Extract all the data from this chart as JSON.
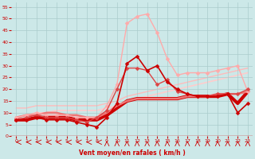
{
  "background_color": "#cce8e8",
  "grid_color": "#aacccc",
  "xlabel": "Vent moyen/en rafales ( km/h )",
  "xlim": [
    -0.5,
    23.5
  ],
  "ylim": [
    0,
    57
  ],
  "xticks": [
    0,
    1,
    2,
    3,
    4,
    5,
    6,
    7,
    8,
    9,
    10,
    11,
    12,
    13,
    14,
    15,
    16,
    17,
    18,
    19,
    20,
    21,
    22,
    23
  ],
  "yticks": [
    0,
    5,
    10,
    15,
    20,
    25,
    30,
    35,
    40,
    45,
    50,
    55
  ],
  "lines": [
    {
      "x": [
        0,
        1,
        2,
        3,
        4,
        5,
        6,
        7,
        8,
        9,
        10,
        11,
        12,
        13,
        14,
        15,
        16,
        17,
        18,
        19,
        20,
        21,
        22,
        23
      ],
      "y": [
        7,
        7,
        8,
        7,
        7,
        7,
        6,
        5,
        4,
        8,
        14,
        31,
        34,
        28,
        30,
        23,
        20,
        18,
        17,
        17,
        17,
        18,
        10,
        14
      ],
      "color": "#cc0000",
      "lw": 1.2,
      "marker": "D",
      "ms": 2.5,
      "zorder": 5
    },
    {
      "x": [
        0,
        1,
        2,
        3,
        4,
        5,
        6,
        7,
        8,
        9,
        10,
        11,
        12,
        13,
        14,
        15,
        16,
        17,
        18,
        19,
        20,
        21,
        22,
        23
      ],
      "y": [
        7,
        8,
        9,
        8,
        8,
        8,
        7,
        6,
        8,
        11,
        20,
        29,
        29,
        28,
        22,
        24,
        19,
        18,
        17,
        17,
        18,
        18,
        18,
        20
      ],
      "color": "#dd4444",
      "lw": 1.0,
      "marker": "D",
      "ms": 2.5,
      "zorder": 4
    },
    {
      "x": [
        0,
        1,
        2,
        3,
        4,
        5,
        6,
        7,
        8,
        9,
        10,
        11,
        12,
        13,
        14,
        15,
        16,
        17,
        18,
        19,
        20,
        21,
        22,
        23
      ],
      "y": [
        8,
        9,
        10,
        9,
        9,
        9,
        8,
        8,
        8,
        13,
        22,
        48,
        51,
        52,
        44,
        33,
        26,
        27,
        27,
        27,
        28,
        29,
        30,
        19
      ],
      "color": "#ffaaaa",
      "lw": 1.0,
      "marker": "D",
      "ms": 2.5,
      "zorder": 3
    },
    {
      "x": [
        0,
        1,
        2,
        3,
        4,
        5,
        6,
        7,
        8,
        9,
        10,
        11,
        12,
        13,
        14,
        15,
        16,
        17,
        18,
        19,
        20,
        21,
        22,
        23
      ],
      "y": [
        7,
        7,
        8,
        8,
        8,
        8,
        7,
        7,
        7,
        9,
        12,
        15,
        16,
        16,
        16,
        16,
        16,
        17,
        17,
        17,
        17,
        18,
        14,
        19
      ],
      "color": "#cc0000",
      "lw": 3.0,
      "marker": null,
      "ms": 0,
      "zorder": 2
    },
    {
      "x": [
        0,
        1,
        2,
        3,
        4,
        5,
        6,
        7,
        8,
        9,
        10,
        11,
        12,
        13,
        14,
        15,
        16,
        17,
        18,
        19,
        20,
        21,
        22,
        23
      ],
      "y": [
        8,
        9,
        9,
        10,
        10,
        9,
        9,
        8,
        8,
        10,
        13,
        15,
        16,
        16,
        16,
        16,
        16,
        17,
        17,
        17,
        18,
        18,
        18,
        19
      ],
      "color": "#ee7777",
      "lw": 1.8,
      "marker": null,
      "ms": 0,
      "zorder": 2
    },
    {
      "x": [
        0,
        1,
        2,
        3,
        4,
        5,
        6,
        7,
        8,
        9,
        10,
        11,
        12,
        13,
        14,
        15,
        16,
        17,
        18,
        19,
        20,
        21,
        22,
        23
      ],
      "y": [
        8,
        9,
        10,
        10,
        11,
        11,
        11,
        11,
        11,
        12,
        13,
        15,
        16,
        17,
        18,
        19,
        20,
        21,
        22,
        23,
        24,
        25,
        26,
        27
      ],
      "color": "#ffcccc",
      "lw": 1.2,
      "marker": null,
      "ms": 0,
      "zorder": 1
    },
    {
      "x": [
        0,
        1,
        2,
        3,
        4,
        5,
        6,
        7,
        8,
        9,
        10,
        11,
        12,
        13,
        14,
        15,
        16,
        17,
        18,
        19,
        20,
        21,
        22,
        23
      ],
      "y": [
        12,
        12,
        13,
        13,
        13,
        13,
        13,
        13,
        13,
        14,
        15,
        17,
        18,
        19,
        20,
        21,
        22,
        23,
        24,
        25,
        26,
        27,
        28,
        29
      ],
      "color": "#ffbbbb",
      "lw": 1.0,
      "marker": null,
      "ms": 0,
      "zorder": 1
    }
  ]
}
